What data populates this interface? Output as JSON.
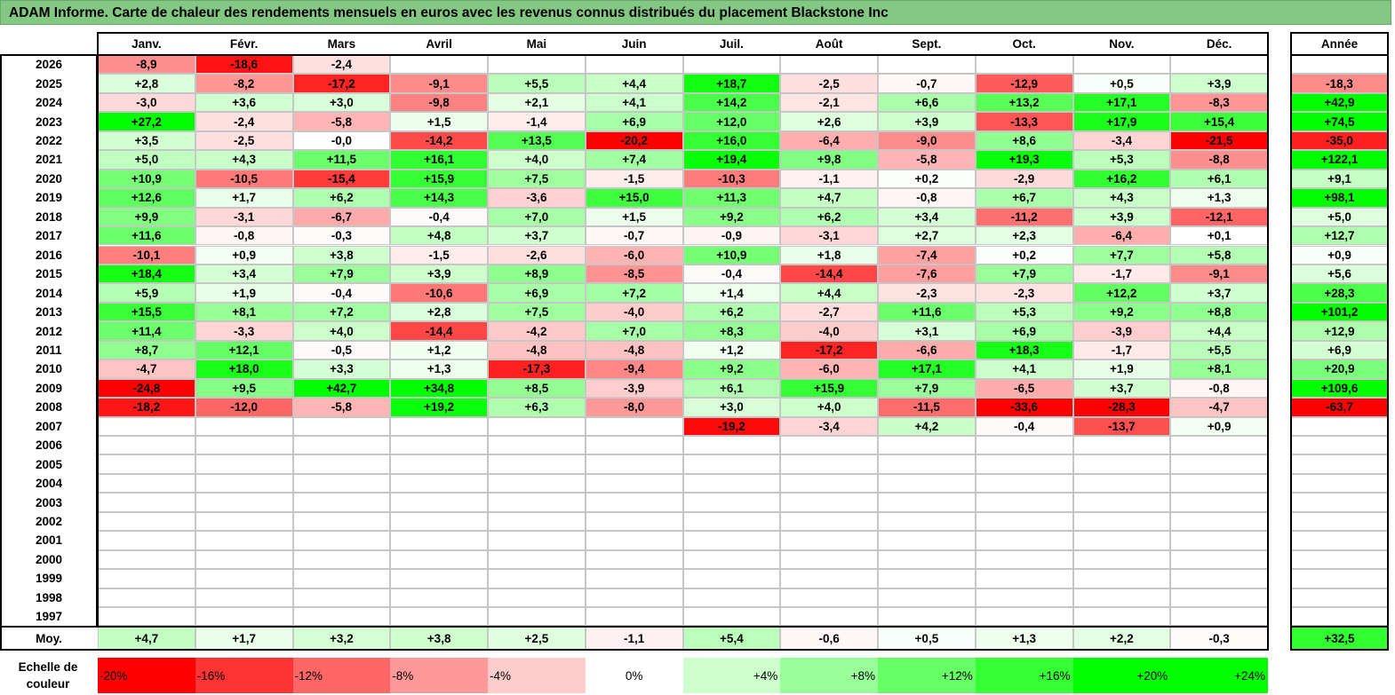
{
  "title": "ADAM Informe. Carte de chaleur des rendements mensuels en euros avec les revenus connus distribués du placement Blackstone Inc",
  "chart_data": {
    "type": "heatmap",
    "months": [
      "Janv.",
      "Févr.",
      "Mars",
      "Avril",
      "Mai",
      "Juin",
      "Juil.",
      "Août",
      "Sept.",
      "Oct.",
      "Nov.",
      "Déc."
    ],
    "annual_header": "Année",
    "rows": [
      {
        "year": "2026",
        "values": [
          "-8,9",
          "-18,6",
          "-2,4",
          "",
          "",
          "",
          "",
          "",
          "",
          "",
          "",
          ""
        ],
        "annual": ""
      },
      {
        "year": "2025",
        "values": [
          "+2,8",
          "-8,2",
          "-17,2",
          "-9,1",
          "+5,5",
          "+4,4",
          "+18,7",
          "-2,5",
          "-0,7",
          "-12,9",
          "+0,5",
          "+3,9"
        ],
        "annual": "-18,3"
      },
      {
        "year": "2024",
        "values": [
          "-3,0",
          "+3,6",
          "+3,0",
          "-9,8",
          "+2,1",
          "+4,1",
          "+14,2",
          "-2,1",
          "+6,6",
          "+13,2",
          "+17,1",
          "-8,3"
        ],
        "annual": "+42,9"
      },
      {
        "year": "2023",
        "values": [
          "+27,2",
          "-2,4",
          "-5,8",
          "+1,5",
          "-1,4",
          "+6,9",
          "+12,0",
          "+2,6",
          "+3,9",
          "-13,3",
          "+17,9",
          "+15,4"
        ],
        "annual": "+74,5"
      },
      {
        "year": "2022",
        "values": [
          "+3,5",
          "-2,5",
          "-0,0",
          "-14,2",
          "+13,5",
          "-20,2",
          "+16,0",
          "-6,4",
          "-9,0",
          "+8,6",
          "-3,4",
          "-21,5"
        ],
        "annual": "-35,0"
      },
      {
        "year": "2021",
        "values": [
          "+5,0",
          "+4,3",
          "+11,5",
          "+16,1",
          "+4,0",
          "+7,4",
          "+19,4",
          "+9,8",
          "-5,8",
          "+19,3",
          "+5,3",
          "-8,8"
        ],
        "annual": "+122,1"
      },
      {
        "year": "2020",
        "values": [
          "+10,9",
          "-10,5",
          "-15,4",
          "+15,9",
          "+7,5",
          "-1,5",
          "-10,3",
          "-1,1",
          "+0,2",
          "-2,9",
          "+16,2",
          "+6,1"
        ],
        "annual": "+9,1"
      },
      {
        "year": "2019",
        "values": [
          "+12,6",
          "+1,7",
          "+6,2",
          "+14,3",
          "-3,6",
          "+15,0",
          "+11,3",
          "+4,7",
          "-0,8",
          "+6,7",
          "+4,3",
          "+1,3"
        ],
        "annual": "+98,1"
      },
      {
        "year": "2018",
        "values": [
          "+9,9",
          "-3,1",
          "-6,7",
          "-0,4",
          "+7,0",
          "+1,5",
          "+9,2",
          "+6,2",
          "+3,4",
          "-11,2",
          "+3,9",
          "-12,1"
        ],
        "annual": "+5,0"
      },
      {
        "year": "2017",
        "values": [
          "+11,6",
          "-0,8",
          "-0,3",
          "+4,8",
          "+3,7",
          "-0,7",
          "-0,9",
          "-3,1",
          "+2,7",
          "+2,3",
          "-6,4",
          "+0,1"
        ],
        "annual": "+12,7"
      },
      {
        "year": "2016",
        "values": [
          "-10,1",
          "+0,9",
          "+3,8",
          "-1,5",
          "-2,6",
          "-6,0",
          "+10,9",
          "+1,8",
          "-7,4",
          "+0,2",
          "+7,7",
          "+5,8"
        ],
        "annual": "+0,9"
      },
      {
        "year": "2015",
        "values": [
          "+18,4",
          "+3,4",
          "+7,9",
          "+3,9",
          "+8,9",
          "-8,5",
          "-0,4",
          "-14,4",
          "-7,6",
          "+7,9",
          "-1,7",
          "-9,1"
        ],
        "annual": "+5,6"
      },
      {
        "year": "2014",
        "values": [
          "+5,9",
          "+1,9",
          "-0,4",
          "-10,6",
          "+6,9",
          "+7,2",
          "+1,4",
          "+4,4",
          "-2,3",
          "-2,3",
          "+12,2",
          "+3,7"
        ],
        "annual": "+28,3"
      },
      {
        "year": "2013",
        "values": [
          "+15,5",
          "+8,1",
          "+7,2",
          "+2,8",
          "+7,5",
          "-4,0",
          "+6,2",
          "-2,7",
          "+11,6",
          "+5,3",
          "+9,2",
          "+8,8"
        ],
        "annual": "+101,2"
      },
      {
        "year": "2012",
        "values": [
          "+11,4",
          "-3,3",
          "+4,0",
          "-14,4",
          "-4,2",
          "+7,0",
          "+8,3",
          "-4,0",
          "+3,1",
          "+6,9",
          "-3,9",
          "+4,4"
        ],
        "annual": "+12,9"
      },
      {
        "year": "2011",
        "values": [
          "+8,7",
          "+12,1",
          "-0,5",
          "+1,2",
          "-4,8",
          "-4,8",
          "+1,2",
          "-17,2",
          "-6,6",
          "+18,3",
          "-1,7",
          "+5,5"
        ],
        "annual": "+6,9"
      },
      {
        "year": "2010",
        "values": [
          "-4,7",
          "+18,0",
          "+3,3",
          "+1,3",
          "-17,3",
          "-9,4",
          "+9,2",
          "-6,0",
          "+17,1",
          "+4,1",
          "+1,9",
          "+8,1"
        ],
        "annual": "+20,9"
      },
      {
        "year": "2009",
        "values": [
          "-24,8",
          "+9,5",
          "+42,7",
          "+34,8",
          "+8,5",
          "-3,9",
          "+6,1",
          "+15,9",
          "+7,9",
          "-6,5",
          "+3,7",
          "-0,8"
        ],
        "annual": "+109,6"
      },
      {
        "year": "2008",
        "values": [
          "-18,2",
          "-12,0",
          "-5,8",
          "+19,2",
          "+6,3",
          "-8,0",
          "+3,0",
          "+4,0",
          "-11,5",
          "-33,6",
          "-28,3",
          "-4,7"
        ],
        "annual": "-63,7"
      },
      {
        "year": "2007",
        "values": [
          "",
          "",
          "",
          "",
          "",
          "",
          "-19,2",
          "-3,4",
          "+4,2",
          "-0,4",
          "-13,7",
          "+0,9"
        ],
        "annual": ""
      },
      {
        "year": "2006",
        "values": [
          "",
          "",
          "",
          "",
          "",
          "",
          "",
          "",
          "",
          "",
          "",
          ""
        ],
        "annual": ""
      },
      {
        "year": "2005",
        "values": [
          "",
          "",
          "",
          "",
          "",
          "",
          "",
          "",
          "",
          "",
          "",
          ""
        ],
        "annual": ""
      },
      {
        "year": "2004",
        "values": [
          "",
          "",
          "",
          "",
          "",
          "",
          "",
          "",
          "",
          "",
          "",
          ""
        ],
        "annual": ""
      },
      {
        "year": "2003",
        "values": [
          "",
          "",
          "",
          "",
          "",
          "",
          "",
          "",
          "",
          "",
          "",
          ""
        ],
        "annual": ""
      },
      {
        "year": "2002",
        "values": [
          "",
          "",
          "",
          "",
          "",
          "",
          "",
          "",
          "",
          "",
          "",
          ""
        ],
        "annual": ""
      },
      {
        "year": "2001",
        "values": [
          "",
          "",
          "",
          "",
          "",
          "",
          "",
          "",
          "",
          "",
          "",
          ""
        ],
        "annual": ""
      },
      {
        "year": "2000",
        "values": [
          "",
          "",
          "",
          "",
          "",
          "",
          "",
          "",
          "",
          "",
          "",
          ""
        ],
        "annual": ""
      },
      {
        "year": "1999",
        "values": [
          "",
          "",
          "",
          "",
          "",
          "",
          "",
          "",
          "",
          "",
          "",
          ""
        ],
        "annual": ""
      },
      {
        "year": "1998",
        "values": [
          "",
          "",
          "",
          "",
          "",
          "",
          "",
          "",
          "",
          "",
          "",
          ""
        ],
        "annual": ""
      },
      {
        "year": "1997",
        "values": [
          "",
          "",
          "",
          "",
          "",
          "",
          "",
          "",
          "",
          "",
          "",
          ""
        ],
        "annual": ""
      }
    ],
    "average_row": {
      "label": "Moy.",
      "values": [
        "+4,7",
        "+1,7",
        "+3,2",
        "+3,8",
        "+2,5",
        "-1,1",
        "+5,4",
        "-0,6",
        "+0,5",
        "+1,3",
        "+2,2",
        "-0,3"
      ],
      "annual": "+32,5"
    },
    "color_scale": {
      "label": "Echelle de couleur",
      "stops": [
        "-20%",
        "-16%",
        "-12%",
        "-8%",
        "-4%",
        "0%",
        "+4%",
        "+8%",
        "+12%",
        "+16%",
        "+20%",
        "+24%"
      ],
      "stop_values": [
        -20,
        -16,
        -12,
        -8,
        -4,
        0,
        4,
        8,
        12,
        16,
        20,
        24
      ],
      "stop_colors": [
        "#ff0000",
        "#ff3333",
        "#ff6666",
        "#ff9999",
        "#ffcccc",
        "#ffffff",
        "#ccffcc",
        "#99ff99",
        "#66ff66",
        "#33ff33",
        "#00ff00",
        "#00ff00"
      ]
    },
    "colors": {
      "negative_max": "#ff0000",
      "neutral": "#ffffff",
      "positive_max": "#00ff00",
      "title_bar": "#82c882"
    }
  }
}
